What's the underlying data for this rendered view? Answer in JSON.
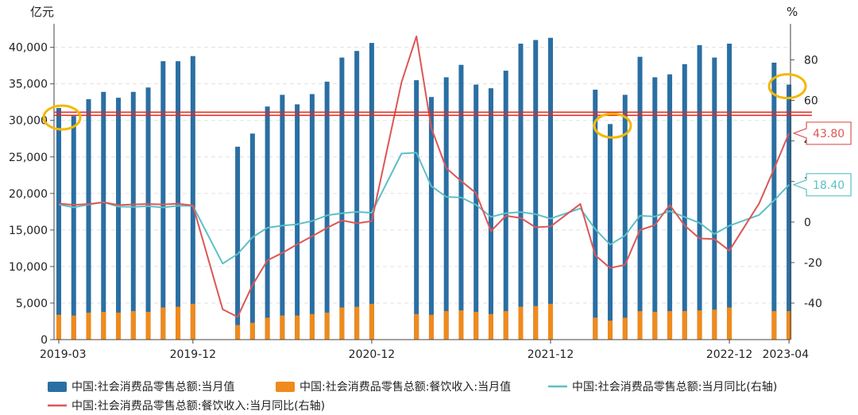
{
  "chart_data": {
    "type": "bar",
    "left_axis_unit": "亿元",
    "right_axis_unit": "%",
    "x_tick_labels": [
      "2019-03",
      "2019-12",
      "2020-12",
      "2021-12",
      "2022-12",
      "2023-04"
    ],
    "ylim_left": [
      0,
      43000
    ],
    "yticks_left": [
      "0",
      "5,000",
      "10,000",
      "15,000",
      "20,000",
      "25,000",
      "30,000",
      "35,000",
      "40,000"
    ],
    "ylim_right": [
      -58,
      97
    ],
    "yticks_right": [
      "-40",
      "-20",
      "0",
      "20",
      "40",
      "60",
      "80"
    ],
    "grid": true,
    "legend_position": "bottom",
    "categories": [
      "2019-03",
      "2019-04",
      "2019-05",
      "2019-06",
      "2019-07",
      "2019-08",
      "2019-09",
      "2019-10",
      "2019-11",
      "2019-12",
      "2020-01",
      "2020-02",
      "2020-03",
      "2020-04",
      "2020-05",
      "2020-06",
      "2020-07",
      "2020-08",
      "2020-09",
      "2020-10",
      "2020-11",
      "2020-12",
      "2021-01",
      "2021-02",
      "2021-03",
      "2021-04",
      "2021-05",
      "2021-06",
      "2021-07",
      "2021-08",
      "2021-09",
      "2021-10",
      "2021-11",
      "2021-12",
      "2022-01",
      "2022-02",
      "2022-03",
      "2022-04",
      "2022-05",
      "2022-06",
      "2022-07",
      "2022-08",
      "2022-09",
      "2022-10",
      "2022-11",
      "2022-12",
      "2023-01",
      "2023-02",
      "2023-03",
      "2023-04"
    ],
    "series": [
      {
        "name": "中国:社会消费品零售总额:当月值",
        "type": "bar",
        "axis": "left",
        "color": "#2a6fa3",
        "values": [
          31700,
          30600,
          32900,
          33900,
          33100,
          33900,
          34500,
          38100,
          38100,
          38800,
          null,
          null,
          26400,
          28200,
          31900,
          33500,
          32200,
          33600,
          35300,
          38600,
          39500,
          40600,
          null,
          null,
          35500,
          33200,
          35900,
          37600,
          34900,
          34400,
          36800,
          40500,
          41000,
          41300,
          null,
          null,
          34200,
          29500,
          33500,
          38700,
          35900,
          36300,
          37700,
          40300,
          38600,
          40500,
          null,
          null,
          37900,
          34900
        ]
      },
      {
        "name": "中国:社会消费品零售总额:餐饮收入:当月值",
        "type": "bar",
        "axis": "left",
        "color": "#f08a1c",
        "values": [
          3400,
          3300,
          3700,
          3800,
          3700,
          3900,
          3800,
          4400,
          4500,
          4900,
          null,
          null,
          2000,
          2300,
          3000,
          3300,
          3300,
          3500,
          3700,
          4400,
          4500,
          4900,
          null,
          null,
          3500,
          3400,
          3900,
          4000,
          3800,
          3500,
          3900,
          4500,
          4600,
          4900,
          null,
          null,
          3000,
          2600,
          3000,
          3900,
          3800,
          3900,
          3900,
          4000,
          4100,
          4400,
          null,
          null,
          3900,
          3900
        ]
      },
      {
        "name": "中国:社会消费品零售总额:当月同比(右轴)",
        "type": "line",
        "axis": "right",
        "color": "#5ebfc6",
        "values": [
          8.7,
          7.2,
          8.6,
          9.8,
          7.6,
          7.5,
          7.8,
          7.2,
          8.0,
          8.0,
          null,
          -20.5,
          -15.8,
          -7.5,
          -2.8,
          -1.8,
          -1.1,
          0.5,
          3.3,
          4.3,
          5.0,
          4.6,
          null,
          33.8,
          34.2,
          17.7,
          12.4,
          12.1,
          8.5,
          2.5,
          4.4,
          4.9,
          3.9,
          1.7,
          null,
          6.7,
          -3.5,
          -11.1,
          -6.7,
          3.1,
          2.7,
          5.4,
          2.5,
          -0.5,
          -5.9,
          -1.8,
          null,
          3.5,
          10.6,
          18.4
        ]
      },
      {
        "name": "中国:社会消费品零售总额:餐饮收入:当月同比(右轴)",
        "type": "line",
        "axis": "right",
        "color": "#dd5656",
        "values": [
          9.1,
          8.5,
          8.9,
          9.7,
          8.4,
          8.7,
          8.9,
          8.7,
          9.0,
          8.2,
          null,
          -43.1,
          -46.8,
          -31.1,
          -18.9,
          -15.2,
          -11.0,
          -7.0,
          -2.9,
          0.8,
          -0.6,
          0.4,
          null,
          68.9,
          91.6,
          46.4,
          26.6,
          20.2,
          14.3,
          -4.5,
          3.1,
          2.0,
          -2.6,
          -2.2,
          null,
          8.9,
          -16.4,
          -22.7,
          -21.1,
          -4.0,
          -1.5,
          8.4,
          -1.7,
          -8.1,
          -8.4,
          -14.1,
          null,
          9.2,
          26.3,
          43.8
        ]
      }
    ],
    "annotations": {
      "reference_line_left_value": 30900,
      "callouts": [
        {
          "series_index": 3,
          "text": "43.80",
          "color": "#dd5656"
        },
        {
          "series_index": 2,
          "text": "18.40",
          "color": "#5ebfc6"
        }
      ],
      "highlight_circles_at": [
        "2019-03",
        "2022-04",
        "2023-04"
      ],
      "highlight_color": "#f4b800"
    }
  }
}
